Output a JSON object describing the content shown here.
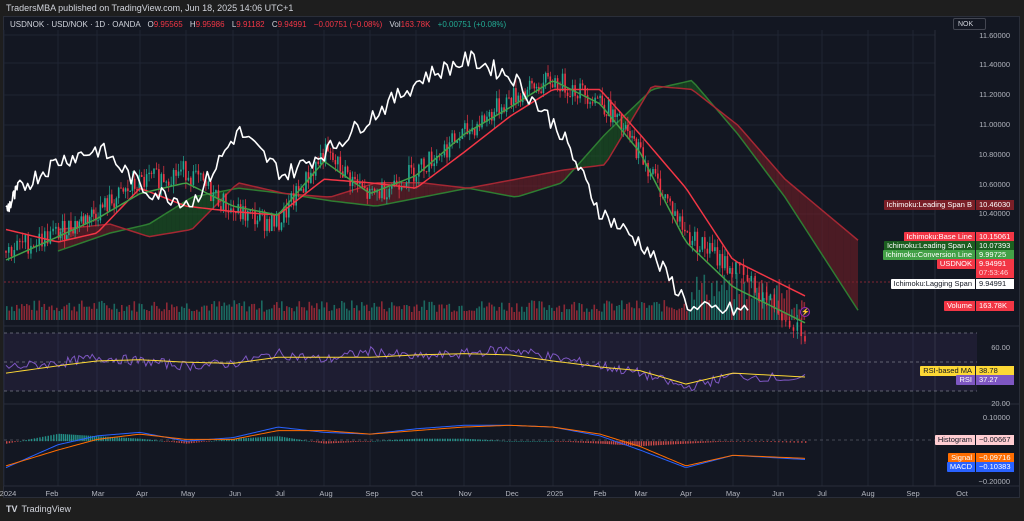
{
  "publish_bar": {
    "text": "TradersMBA published on TradingView.com, Jun 18, 2025 14:06 UTC+1"
  },
  "legend": {
    "symbol": "USDNOK · USD/NOK · 1D · OANDA",
    "open_label": "O",
    "open": "9.95565",
    "high_label": "H",
    "high": "9.95986",
    "low_label": "L",
    "low": "9.91182",
    "close_label": "C",
    "close": "9.94991",
    "change": "−0.00751 (−0.08%)",
    "vol_label": "Vol",
    "vol": "163.78K",
    "vol_change": "+0.00751 (+0.08%)"
  },
  "currency_button": "NOK",
  "price_axis": {
    "ticks": [
      "11.60000",
      "11.40000",
      "11.20000",
      "11.00000",
      "10.80000",
      "10.60000",
      "10.40000"
    ]
  },
  "rsi_axis": {
    "ticks": [
      "60.00",
      "20.00"
    ]
  },
  "macd_axis": {
    "ticks": [
      "0.10000",
      "−0.20000"
    ]
  },
  "x_axis": {
    "ticks": [
      "2024",
      "Feb",
      "Mar",
      "Apr",
      "May",
      "Jun",
      "Jul",
      "Aug",
      "Sep",
      "Oct",
      "Nov",
      "Dec",
      "2025",
      "Feb",
      "Mar",
      "Apr",
      "May",
      "Jun",
      "Jul",
      "Aug",
      "Sep",
      "Oct"
    ]
  },
  "price_tags": [
    {
      "name": "Ichimoku:Leading Span B",
      "value": "10.46030",
      "name_bg": "#7a1f27",
      "val_bg": "#7a1f27",
      "color": "#ffffff"
    },
    {
      "name": "Ichimoku:Base Line",
      "value": "10.15061",
      "name_bg": "#f23645",
      "val_bg": "#f23645",
      "color": "#ffffff"
    },
    {
      "name": "Ichimoku:Leading Span A",
      "value": "10.07393",
      "name_bg": "#1b5e20",
      "val_bg": "#1b5e20",
      "color": "#ffffff"
    },
    {
      "name": "Ichimoku:Conversion Line",
      "value": "9.99725",
      "name_bg": "#43a047",
      "val_bg": "#43a047",
      "color": "#ffffff"
    },
    {
      "name": "USDNOK",
      "value": "9.94991",
      "name_bg": "#f23645",
      "val_bg": "#f23645",
      "color": "#ffffff"
    },
    {
      "name": "",
      "value": "07:53:46",
      "name_bg": "transparent",
      "val_bg": "#f23645",
      "color": "#ffd1d5"
    },
    {
      "name": "Ichimoku:Lagging Span",
      "value": "9.94991",
      "name_bg": "#ffffff",
      "val_bg": "#ffffff",
      "color": "#131722"
    },
    {
      "name": "Volume",
      "value": "163.78K",
      "name_bg": "#f23645",
      "val_bg": "#f23645",
      "color": "#ffffff"
    }
  ],
  "rsi_tags": [
    {
      "name": "RSI-based MA",
      "value": "38.78",
      "name_bg": "#fdd835",
      "val_bg": "#fdd835",
      "color": "#131722"
    },
    {
      "name": "RSI",
      "value": "37.27",
      "name_bg": "#7e57c2",
      "val_bg": "#7e57c2",
      "color": "#ffffff"
    }
  ],
  "macd_tags": [
    {
      "name": "Histogram",
      "value": "−0.00667",
      "name_bg": "#ffcdd2",
      "val_bg": "#ffcdd2",
      "color": "#131722"
    },
    {
      "name": "Signal",
      "value": "−0.09716",
      "name_bg": "#ff6d00",
      "val_bg": "#ff6d00",
      "color": "#ffffff"
    },
    {
      "name": "MACD",
      "value": "−0.10383",
      "name_bg": "#2962ff",
      "val_bg": "#2962ff",
      "color": "#ffffff"
    }
  ],
  "footer": {
    "brand": "TradingView",
    "logo": "TV"
  },
  "colors": {
    "background": "#131722",
    "up": "#22ab94",
    "down": "#f23645",
    "conversion": "#43a047",
    "base": "#f23645",
    "lagging": "#ffffff",
    "cloud_up": "#1b5e20",
    "cloud_down": "#7a1f27",
    "rsi": "#7e57c2",
    "rsi_ma": "#fdd835",
    "macd": "#2962ff",
    "signal": "#ff6d00"
  },
  "chart_data": {
    "type": "line",
    "title": "USDNOK · USD/NOK · 1D · OANDA",
    "xlabel": "",
    "ylabel": "NOK",
    "ylim": [
      10.35,
      11.62
    ],
    "x": [
      "2024-01",
      "2024-02",
      "2024-03",
      "2024-04",
      "2024-05",
      "2024-06",
      "2024-07",
      "2024-08",
      "2024-09",
      "2024-10",
      "2024-11",
      "2024-12",
      "2025-01",
      "2025-02",
      "2025-03",
      "2025-04",
      "2025-05",
      "2025-06"
    ],
    "series": [
      {
        "name": "USDNOK Close",
        "values": [
          10.4,
          10.5,
          10.62,
          10.78,
          10.85,
          10.62,
          10.55,
          10.95,
          10.7,
          10.85,
          11.05,
          11.25,
          11.35,
          11.25,
          10.95,
          10.5,
          10.3,
          9.95
        ]
      },
      {
        "name": "Ichimoku:Conversion Line",
        "values": [
          10.35,
          10.48,
          10.58,
          10.72,
          10.78,
          10.65,
          10.6,
          10.9,
          10.72,
          10.82,
          11.05,
          11.2,
          11.35,
          11.22,
          10.95,
          10.45,
          10.2,
          10.0
        ]
      },
      {
        "name": "Ichimoku:Base Line",
        "values": [
          10.52,
          10.45,
          10.5,
          10.75,
          10.65,
          10.62,
          10.6,
          10.8,
          10.78,
          10.75,
          10.95,
          11.15,
          11.3,
          11.3,
          11.05,
          10.75,
          10.35,
          10.15
        ]
      },
      {
        "name": "Ichimoku:Leading Span A",
        "values": [
          10.4,
          10.5,
          10.55,
          10.7,
          10.75,
          10.72,
          10.68,
          10.65,
          10.7,
          10.75,
          10.7,
          10.78,
          11.05,
          11.3,
          11.35,
          11.05,
          10.7,
          10.07
        ]
      },
      {
        "name": "Ichimoku:Leading Span B",
        "values": [
          10.52,
          10.55,
          10.48,
          10.52,
          10.78,
          10.72,
          10.7,
          10.78,
          10.78,
          10.75,
          10.8,
          10.85,
          10.88,
          11.32,
          11.3,
          11.1,
          10.8,
          10.46
        ]
      },
      {
        "name": "RSI",
        "values": [
          47,
          50,
          55,
          52,
          48,
          50,
          58,
          53,
          60,
          55,
          58,
          62,
          55,
          48,
          42,
          30,
          40,
          37.27
        ]
      },
      {
        "name": "RSI-based MA",
        "values": [
          42,
          48,
          52,
          53,
          51,
          50,
          55,
          55,
          55,
          57,
          58,
          57,
          52,
          47,
          44,
          33,
          42,
          38.78
        ]
      },
      {
        "name": "MACD",
        "values": [
          -0.15,
          -0.02,
          0.03,
          0.05,
          0.0,
          0.02,
          0.08,
          0.05,
          0.04,
          0.07,
          0.09,
          0.09,
          0.08,
          0.03,
          -0.05,
          -0.15,
          -0.08,
          -0.10383
        ]
      },
      {
        "name": "Signal",
        "values": [
          -0.14,
          -0.05,
          0.01,
          0.04,
          0.01,
          0.01,
          0.06,
          0.06,
          0.04,
          0.06,
          0.08,
          0.09,
          0.08,
          0.04,
          -0.03,
          -0.14,
          -0.08,
          -0.09716
        ]
      }
    ],
    "annotations": [
      "Ichimoku:Leading Span B 10.46030",
      "Ichimoku:Base Line 10.15061",
      "Ichimoku:Leading Span A 10.07393",
      "Ichimoku:Conversion Line 9.99725",
      "USDNOK 9.94991",
      "Ichimoku:Lagging Span 9.94991",
      "Volume 163.78K",
      "RSI-based MA 38.78",
      "RSI 37.27",
      "Histogram −0.00667",
      "Signal −0.09716",
      "MACD −0.10383"
    ],
    "panes": {
      "price": {
        "ylim": [
          10.35,
          11.62
        ],
        "ticks": [
          11.6,
          11.4,
          11.2,
          11.0,
          10.8,
          10.6,
          10.4
        ]
      },
      "rsi": {
        "ylim": [
          10,
          75
        ],
        "bands": [
          70,
          50,
          30
        ],
        "ticks": [
          60,
          20
        ]
      },
      "macd": {
        "ylim": [
          -0.22,
          0.12
        ],
        "ticks": [
          0.1,
          -0.2
        ]
      }
    },
    "grid": true,
    "legend_position": "top-left"
  }
}
